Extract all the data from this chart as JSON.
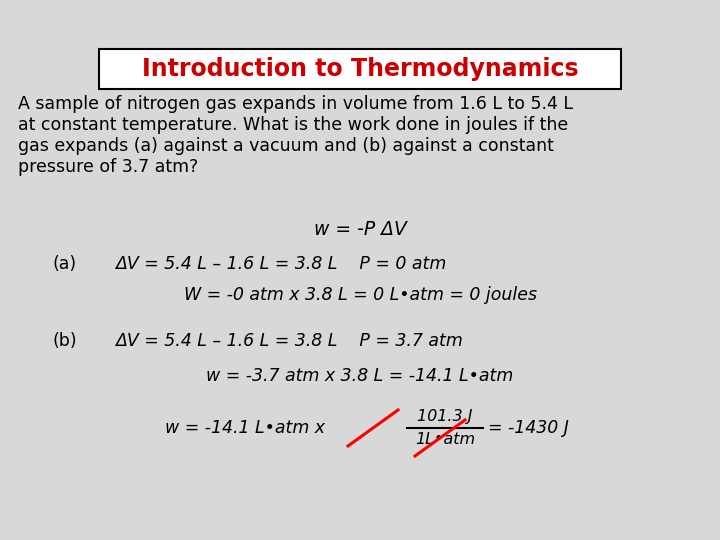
{
  "title": "Introduction to Thermodynamics",
  "title_color": "#cc0000",
  "title_fontsize": 17,
  "bg_color": "#d8d8d8",
  "text_color": "#000000",
  "body_fontsize": 12.5,
  "paragraph_line1": "A sample of nitrogen gas expands in volume from 1.6 L to 5.4 L",
  "paragraph_line2": "at constant temperature. What is the work done in joules if the",
  "paragraph_line3": "gas expands (a) against a vacuum and (b) against a constant",
  "paragraph_line4": "pressure of 3.7 atm?",
  "line1": "w = -P ΔV",
  "line2a_label": "(a)",
  "line2a": "ΔV = 5.4 L – 1.6 L = 3.8 L    P = 0 atm",
  "line3": "W = -0 atm x 3.8 L = 0 L•atm = 0 joules",
  "line4b_label": "(b)",
  "line4b": "ΔV = 5.4 L – 1.6 L = 3.8 L    P = 3.7 atm",
  "line5": "w = -3.7 atm x 3.8 L = -14.1 L•atm",
  "line6a": "w = -14.1 L•atm x ",
  "line6b_num": "101.3 J",
  "line6b_den": "1L•atm",
  "line6c": "= -1430 J"
}
